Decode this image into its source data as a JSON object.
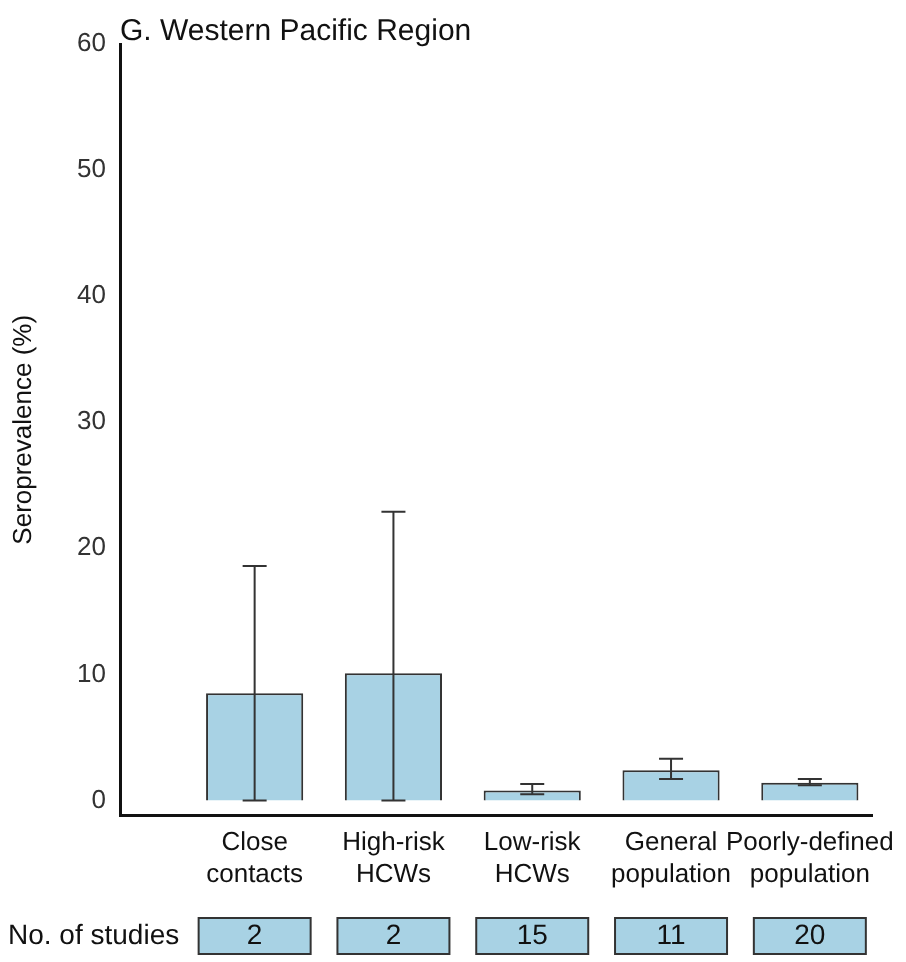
{
  "chart_data": {
    "type": "bar",
    "title": "G. Western Pacific Region",
    "ylabel": "Seroprevalence (%)",
    "categories": [
      "Close contacts",
      "High-risk HCWs",
      "Low-risk HCWs",
      "General population",
      "Poorly-defined population"
    ],
    "values": [
      8.5,
      10.1,
      0.8,
      2.4,
      1.4
    ],
    "errors": [
      [
        0,
        18.6
      ],
      [
        0,
        22.9
      ],
      [
        0.5,
        1.3
      ],
      [
        1.7,
        3.3
      ],
      [
        1.2,
        1.7
      ]
    ],
    "color": "#a8d2e4",
    "ylim": [
      -1.2,
      60
    ],
    "yticks": [
      0,
      10,
      20,
      30,
      40,
      50,
      60
    ],
    "grid": false,
    "legend": false,
    "annotations": [
      "No. of studies",
      "2",
      "2",
      "15",
      "11",
      "20"
    ]
  }
}
